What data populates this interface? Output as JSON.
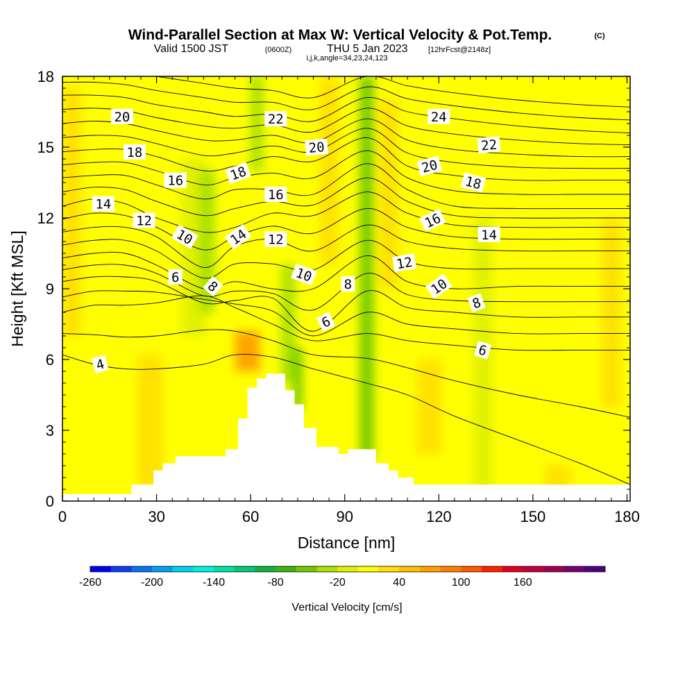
{
  "header": {
    "title": "Wind-Parallel Section at Max W: Vertical Velocity & Pot.Temp.",
    "copyright": "(C)",
    "valid_pre": "Valid 1500 JST",
    "valid_z": "(0600Z)",
    "valid_post": "THU 5 Jan 2023",
    "forecast": "[12hrFcst@2148z]",
    "indices": "i,j,k,angle=34,23,24,123"
  },
  "chart_data": {
    "type": "heatmap",
    "xlabel": "Distance [nm]",
    "ylabel": "Height [Kft MSL]",
    "xlim": [
      0,
      181
    ],
    "ylim": [
      0,
      18
    ],
    "x_ticks": [
      "0",
      "30",
      "60",
      "90",
      "120",
      "150",
      "180"
    ],
    "y_ticks": [
      "0",
      "3",
      "6",
      "9",
      "12",
      "15",
      "18"
    ],
    "x_tick_values": [
      0,
      30,
      60,
      90,
      120,
      150,
      180
    ],
    "y_tick_values": [
      0,
      3,
      6,
      9,
      12,
      15,
      18
    ],
    "colorbar": {
      "label": "Vertical Velocity [cm/s]",
      "tick_labels": [
        "-260",
        "-200",
        "-140",
        "-80",
        "-20",
        "40",
        "100",
        "160"
      ],
      "tick_values": [
        -260,
        -200,
        -140,
        -80,
        -20,
        40,
        100,
        160
      ],
      "min": -260,
      "step": 20,
      "colors": [
        "#0000f0",
        "#0a3cf0",
        "#0a70f0",
        "#00a0f0",
        "#00d0f0",
        "#00f0e0",
        "#00e0a0",
        "#00c878",
        "#10b040",
        "#40b010",
        "#70c800",
        "#a8e000",
        "#e0f000",
        "#ffff00",
        "#ffe000",
        "#ffc000",
        "#ffa000",
        "#ff8000",
        "#ff5a00",
        "#ff2000",
        "#e00020",
        "#c0003c",
        "#a00050",
        "#780070",
        "#500080"
      ]
    },
    "background_value": 10,
    "velocity_features": [
      {
        "x": 3,
        "y0": 7,
        "y1": 17.5,
        "width": 3,
        "value": 25
      },
      {
        "x": 28,
        "y0": 0.6,
        "y1": 6.2,
        "width": 4,
        "value": 38
      },
      {
        "x": 42,
        "y0": 7,
        "y1": 14.5,
        "width": 4,
        "value": -18
      },
      {
        "x": 46,
        "y0": 8,
        "y1": 14,
        "width": 2.5,
        "value": -30
      },
      {
        "x": 59,
        "y0": 5.5,
        "y1": 7.2,
        "width": 4,
        "value": 60
      },
      {
        "x": 62,
        "y0": 14,
        "y1": 18,
        "width": 2,
        "value": -38
      },
      {
        "x": 72,
        "y0": 5,
        "y1": 10,
        "width": 2.2,
        "value": -40
      },
      {
        "x": 75,
        "y0": 3.8,
        "y1": 6.5,
        "width": 1.5,
        "value": -55
      },
      {
        "x": 85,
        "y0": 10,
        "y1": 18,
        "width": 3,
        "value": 25
      },
      {
        "x": 97,
        "y0": 1.8,
        "y1": 18,
        "width": 2.2,
        "value": -45
      },
      {
        "x": 104,
        "y0": 9,
        "y1": 17,
        "width": 3,
        "value": 28
      },
      {
        "x": 117,
        "y0": 2,
        "y1": 6,
        "width": 4,
        "value": 30
      },
      {
        "x": 134,
        "y0": 0.4,
        "y1": 12,
        "width": 3,
        "value": -12
      },
      {
        "x": 158,
        "y0": 0.3,
        "y1": 1.5,
        "width": 4,
        "value": 38
      },
      {
        "x": 175,
        "y0": 4,
        "y1": 12,
        "width": 3,
        "value": 22
      }
    ],
    "terrain": [
      [
        22,
        0.7
      ],
      [
        29,
        1.3
      ],
      [
        32,
        1.6
      ],
      [
        36,
        1.9
      ],
      [
        52,
        2.2
      ],
      [
        56,
        3.5
      ],
      [
        59,
        4.8
      ],
      [
        62,
        5.2
      ],
      [
        65,
        5.4
      ],
      [
        71,
        4.7
      ],
      [
        74,
        4.1
      ],
      [
        77,
        3.1
      ],
      [
        81,
        2.3
      ],
      [
        88,
        2.0
      ],
      [
        91,
        2.2
      ],
      [
        100,
        1.6
      ],
      [
        104,
        1.3
      ],
      [
        107,
        1.0
      ],
      [
        112,
        0.7
      ],
      [
        181,
        0.4
      ]
    ],
    "theta_contours": [
      {
        "level": 4,
        "y": [
          6.2,
          5.8,
          5.6,
          5.6,
          5.8,
          6.2,
          6.1,
          5.6,
          5.0,
          4.5,
          3.6,
          2.6,
          1.6,
          0.7
        ]
      },
      {
        "level": 6,
        "y": [
          8.0,
          8.3,
          8.3,
          8.4,
          8.7,
          8.2,
          7.5,
          6.8,
          7.1,
          6.8,
          6.6,
          6.4,
          6.4,
          6.4
        ]
      },
      {
        "level": 8,
        "y": [
          9.3,
          9.5,
          9.5,
          9.3,
          8.4,
          8.5,
          8.6,
          7.2,
          8.9,
          8.2,
          8.0,
          7.8,
          7.8,
          7.8
        ]
      },
      {
        "level": 10,
        "y": [
          10.3,
          10.5,
          10.5,
          10.0,
          9.0,
          9.3,
          9.0,
          9.0,
          10.4,
          9.3,
          9.0,
          9.1,
          9.1,
          9.1
        ]
      },
      {
        "level": 12,
        "y": [
          11.4,
          11.6,
          11.6,
          11.2,
          9.9,
          10.8,
          11.1,
          10.6,
          11.7,
          11.0,
          10.7,
          10.6,
          10.6,
          10.6
        ]
      },
      {
        "level": 14,
        "y": [
          12.5,
          12.8,
          12.6,
          12.0,
          11.4,
          11.6,
          12.2,
          12.1,
          13.1,
          12.2,
          11.7,
          11.6,
          11.6,
          11.6
        ]
      },
      {
        "level": 16,
        "y": [
          13.7,
          13.8,
          13.8,
          13.4,
          12.8,
          13.2,
          13.2,
          13.0,
          14.3,
          13.2,
          12.5,
          12.4,
          12.4,
          12.4
        ]
      },
      {
        "level": 18,
        "y": [
          14.8,
          14.9,
          14.9,
          14.6,
          14.0,
          14.2,
          14.6,
          14.4,
          15.4,
          14.2,
          13.8,
          13.6,
          13.6,
          13.6
        ]
      },
      {
        "level": 20,
        "y": [
          16.0,
          16.1,
          16.0,
          15.7,
          15.3,
          15.3,
          15.5,
          15.2,
          16.2,
          15.3,
          14.9,
          14.7,
          14.6,
          14.6
        ]
      },
      {
        "level": 22,
        "y": [
          17.2,
          17.2,
          17.1,
          16.8,
          16.5,
          16.3,
          16.4,
          16.1,
          17.1,
          16.5,
          16.2,
          15.9,
          15.7,
          15.6
        ]
      },
      {
        "level": 24,
        "y": [
          18.3,
          18.3,
          18.2,
          18.0,
          17.7,
          17.5,
          17.4,
          17.1,
          18.0,
          17.6,
          17.3,
          17.0,
          16.8,
          16.7
        ]
      }
    ],
    "contour_x": [
      0,
      10,
      20,
      30,
      45,
      55,
      67,
      80,
      97,
      110,
      125,
      145,
      165,
      181
    ],
    "contour_labels": [
      {
        "text": "4",
        "x": 12,
        "y": 5.8,
        "angle": -15
      },
      {
        "text": "6",
        "x": 36,
        "y": 9.5,
        "angle": 0
      },
      {
        "text": "6",
        "x": 84,
        "y": 7.6,
        "angle": -25
      },
      {
        "text": "6",
        "x": 134,
        "y": 6.4,
        "angle": 15
      },
      {
        "text": "8",
        "x": 48,
        "y": 9.1,
        "angle": 40
      },
      {
        "text": "8",
        "x": 91,
        "y": 9.2,
        "angle": 0
      },
      {
        "text": "8",
        "x": 132,
        "y": 8.4,
        "angle": -20
      },
      {
        "text": "10",
        "x": 39,
        "y": 11.2,
        "angle": 30
      },
      {
        "text": "10",
        "x": 77,
        "y": 9.6,
        "angle": 20
      },
      {
        "text": "10",
        "x": 120,
        "y": 9.1,
        "angle": -35
      },
      {
        "text": "12",
        "x": 26,
        "y": 11.9,
        "angle": 0
      },
      {
        "text": "12",
        "x": 68,
        "y": 11.1,
        "angle": 0
      },
      {
        "text": "12",
        "x": 109,
        "y": 10.1,
        "angle": -10
      },
      {
        "text": "14",
        "x": 13,
        "y": 12.6,
        "angle": 0
      },
      {
        "text": "14",
        "x": 56,
        "y": 11.2,
        "angle": -35
      },
      {
        "text": "14",
        "x": 136,
        "y": 11.3,
        "angle": 0
      },
      {
        "text": "16",
        "x": 36,
        "y": 13.6,
        "angle": 0
      },
      {
        "text": "16",
        "x": 68,
        "y": 13.0,
        "angle": 0
      },
      {
        "text": "16",
        "x": 118,
        "y": 11.9,
        "angle": -25
      },
      {
        "text": "18",
        "x": 23,
        "y": 14.8,
        "angle": 0
      },
      {
        "text": "18",
        "x": 56,
        "y": 13.9,
        "angle": -20
      },
      {
        "text": "18",
        "x": 131,
        "y": 13.5,
        "angle": 15
      },
      {
        "text": "20",
        "x": 19,
        "y": 16.3,
        "angle": 0
      },
      {
        "text": "20",
        "x": 81,
        "y": 15.0,
        "angle": -5
      },
      {
        "text": "20",
        "x": 117,
        "y": 14.2,
        "angle": -15
      },
      {
        "text": "22",
        "x": 68,
        "y": 16.2,
        "angle": 0
      },
      {
        "text": "22",
        "x": 136,
        "y": 15.1,
        "angle": -5
      },
      {
        "text": "24",
        "x": 120,
        "y": 16.3,
        "angle": 0
      }
    ]
  }
}
